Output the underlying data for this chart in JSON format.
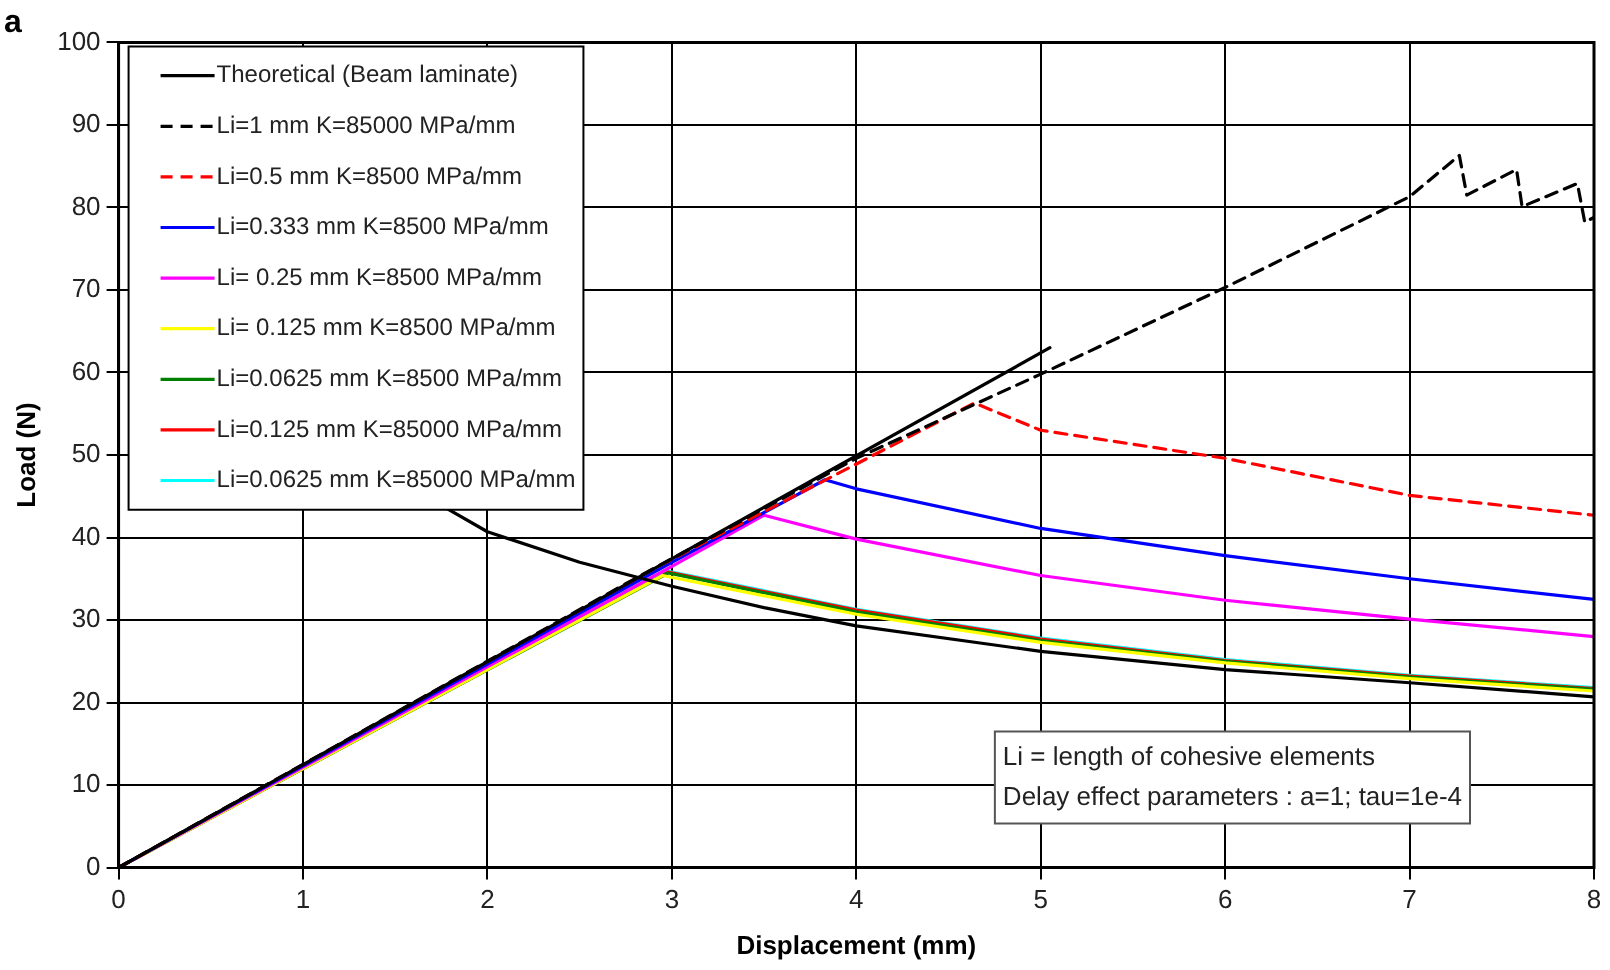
{
  "chart_data": {
    "type": "line",
    "title": "a",
    "xlabel": "Displacement (mm)",
    "ylabel": "Load (N)",
    "xlim": [
      0,
      8
    ],
    "xticks": [
      0,
      1,
      2,
      3,
      4,
      5,
      6,
      7,
      8
    ],
    "ylim": [
      0,
      100
    ],
    "yticks": [
      0,
      10,
      20,
      30,
      40,
      50,
      60,
      70,
      80,
      90,
      100
    ],
    "grid": true,
    "legend": "top left",
    "marker": "none",
    "line_style": "solid",
    "annotations": [
      "Li = length of cohesive elements",
      "Delay effect parameters : a=1; tau=1e-4"
    ],
    "series": [
      {
        "name": "Theoretical (Beam laminate)",
        "color": "#000000",
        "x": [
          0,
          5.05
        ],
        "values": [
          0,
          63
        ]
      },
      {
        "color": "#000000",
        "x": [
          1.75,
          2,
          2.5,
          3,
          3.5,
          4,
          5,
          6,
          7,
          8
        ],
        "values": [
          43.9,
          40.7,
          37,
          34.1,
          31.5,
          29.3,
          26.2,
          24,
          22.4,
          20.7
        ]
      },
      {
        "name": "Li=1 mm K=85000 MPa/mm",
        "color": "#000000",
        "line_style": "dashed",
        "x": [
          0,
          2.75,
          4,
          5,
          6,
          7,
          7.27,
          7.31,
          7.58,
          7.61,
          7.91,
          7.95,
          8
        ],
        "values": [
          0,
          34.4,
          49.6,
          59.8,
          70.3,
          81.3,
          86.3,
          81.5,
          84.6,
          80.1,
          82.9,
          78.2,
          78.8
        ]
      },
      {
        "name": "Li=0.5 mm K=8500 MPa/mm",
        "color": "#ff0000",
        "line_style": "dashed",
        "x": [
          0,
          2.9,
          4.64,
          5,
          6,
          7,
          8
        ],
        "values": [
          0,
          36.2,
          56.3,
          53,
          49.6,
          45.1,
          42.7
        ]
      },
      {
        "name": "Li=0.333 mm K=8500 MPa/mm",
        "color": "#0000ff",
        "x": [
          0,
          3,
          3.83,
          4,
          5,
          6,
          7,
          8
        ],
        "values": [
          0,
          37,
          47,
          45.9,
          41.1,
          37.8,
          35,
          32.5
        ]
      },
      {
        "name": "Li= 0.25 mm K=8500 MPa/mm",
        "color": "#ff00ff",
        "x": [
          0,
          3,
          3.5,
          4,
          5,
          6,
          7,
          8
        ],
        "values": [
          0,
          36.5,
          42.7,
          39.8,
          35.4,
          32.4,
          30.1,
          28
        ]
      },
      {
        "name": "Li= 0.125 mm K=8500 MPa/mm",
        "color": "#ffff00",
        "x": [
          0,
          2.95,
          4,
          5,
          6,
          7,
          8
        ],
        "values": [
          0,
          35.4,
          30.7,
          27.3,
          24.8,
          22.9,
          21.4
        ]
      },
      {
        "name": "Li=0.0625 mm K=8500 MPa/mm",
        "color": "#008000",
        "x": [
          0,
          2.98,
          4,
          5,
          6,
          7,
          8
        ],
        "values": [
          0,
          35.7,
          31,
          27.5,
          25,
          23.1,
          21.6
        ]
      },
      {
        "name": "Li=0.125 mm K=85000 MPa/mm",
        "color": "#ff0000",
        "x": [
          0,
          2.98,
          4,
          5,
          6,
          7,
          8
        ],
        "values": [
          0,
          35.8,
          31.2,
          27.7,
          25.1,
          23.2,
          21.7
        ]
      },
      {
        "name": "Li=0.0625 mm K=85000 MPa/mm",
        "color": "#00ffff",
        "x": [
          0,
          2.98,
          4,
          5,
          6,
          7,
          8
        ],
        "values": [
          0,
          35.9,
          31.3,
          27.8,
          25.2,
          23.3,
          21.8
        ]
      }
    ]
  }
}
